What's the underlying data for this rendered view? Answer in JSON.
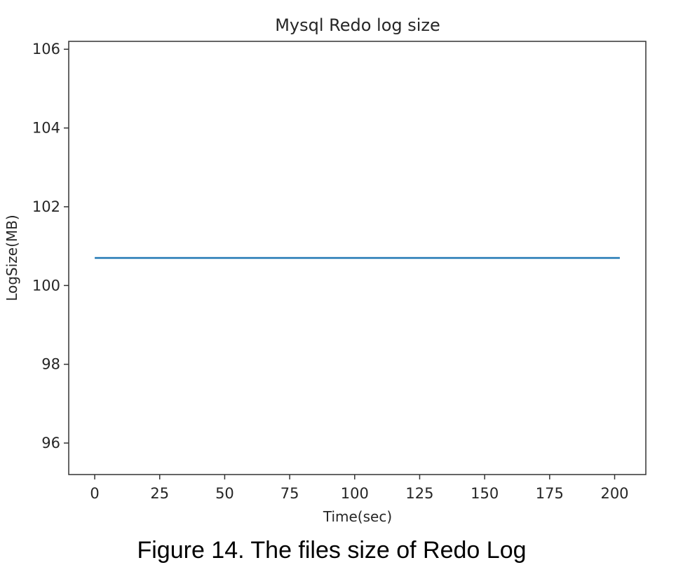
{
  "chart_data": {
    "type": "line",
    "title": "Mysql Redo log size",
    "xlabel": "Time(sec)",
    "ylabel": "LogSize(MB)",
    "xlim": [
      -10,
      212
    ],
    "ylim": [
      95.2,
      106.2
    ],
    "xticks": [
      0,
      25,
      50,
      75,
      100,
      125,
      150,
      175,
      200
    ],
    "yticks": [
      96,
      98,
      100,
      102,
      104,
      106
    ],
    "grid": false,
    "series": [
      {
        "color": "#1f77b4",
        "x": [
          0,
          202
        ],
        "y": [
          100.7,
          100.7
        ]
      }
    ]
  },
  "caption": "Figure 14. The files size of Redo Log"
}
